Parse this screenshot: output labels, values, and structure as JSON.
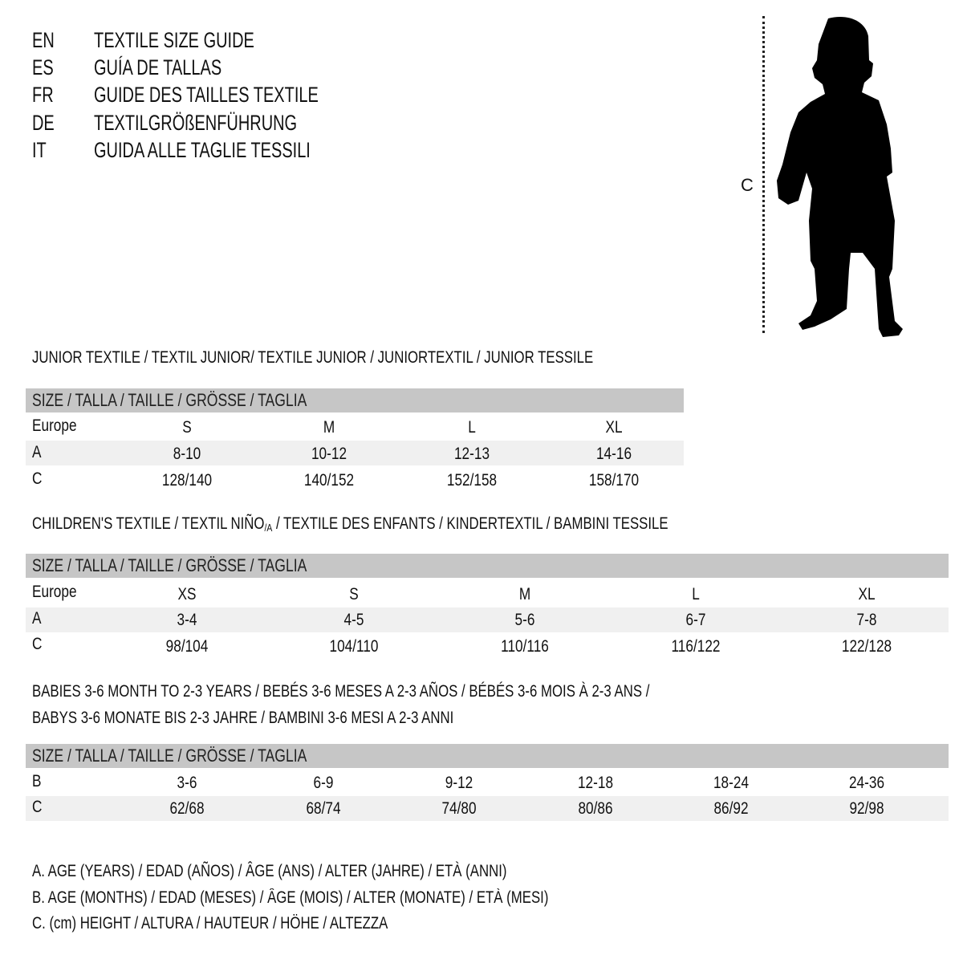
{
  "languages": [
    {
      "code": "EN",
      "title": "TEXTILE SIZE GUIDE"
    },
    {
      "code": "ES",
      "title": "GUÍA DE TALLAS"
    },
    {
      "code": "FR",
      "title": "GUIDE DES TAILLES TEXTILE"
    },
    {
      "code": "DE",
      "title": "TEXTILGRÖßENFÜHRUNG"
    },
    {
      "code": "IT",
      "title": "GUIDA ALLE TAGLIE TESSILI"
    }
  ],
  "figure": {
    "measure_label": "C",
    "icon": "child-silhouette-icon"
  },
  "size_header": "SIZE / TALLA / TAILLE / GRÖSSE / TAGLIA",
  "junior": {
    "title": "JUNIOR TEXTILE / TEXTIL JUNIOR/ TEXTILE JUNIOR / JUNIORTEXTIL / JUNIOR TESSILE",
    "rows": [
      {
        "label": "Europe",
        "values": [
          "S",
          "M",
          "L",
          "XL"
        ]
      },
      {
        "label": "A",
        "values": [
          "8-10",
          "10-12",
          "12-13",
          "14-16"
        ]
      },
      {
        "label": "C",
        "values": [
          "128/140",
          "140/152",
          "152/158",
          "158/170"
        ]
      }
    ]
  },
  "children": {
    "title_pre": "CHILDREN'S TEXTILE / TEXTIL NIÑO",
    "title_sub": "/A",
    "title_post": " / TEXTILE DES ENFANTS / KINDERTEXTIL / BAMBINI TESSILE",
    "rows": [
      {
        "label": "Europe",
        "values": [
          "XS",
          "S",
          "M",
          "L",
          "XL"
        ]
      },
      {
        "label": "A",
        "values": [
          "3-4",
          "4-5",
          "5-6",
          "6-7",
          "7-8"
        ]
      },
      {
        "label": "C",
        "values": [
          "98/104",
          "104/110",
          "110/116",
          "116/122",
          "122/128"
        ]
      }
    ]
  },
  "babies": {
    "title_line1": "BABIES 3-6 MONTH TO 2-3 YEARS / BEBÉS 3-6 MESES A 2-3 AÑOS / BÉBÉS 3-6 MOIS À 2-3 ANS /",
    "title_line2": "BABYS 3-6 MONATE BIS 2-3 JAHRE / BAMBINI 3-6 MESI A 2-3 ANNI",
    "rows": [
      {
        "label": "B",
        "values": [
          "3-6",
          "6-9",
          "9-12",
          "12-18",
          "18-24",
          "24-36"
        ]
      },
      {
        "label": "C",
        "values": [
          "62/68",
          "68/74",
          "74/80",
          "80/86",
          "86/92",
          "92/98"
        ]
      }
    ]
  },
  "legend": [
    "A. AGE (YEARS) / EDAD (AÑOS) / ÂGE (ANS) / ALTER (JAHRE) / ETÀ (ANNI)",
    "B. AGE (MONTHS) / EDAD (MESES) / ÂGE (MOIS) / ALTER (MONATE) / ETÀ (MESI)",
    "C. (cm) HEIGHT / ALTURA / HAUTEUR / HÖHE / ALTEZZA"
  ],
  "colors": {
    "header_bar": "#c6c6c6",
    "stripe": "#f0f0f0",
    "text": "#111111"
  }
}
